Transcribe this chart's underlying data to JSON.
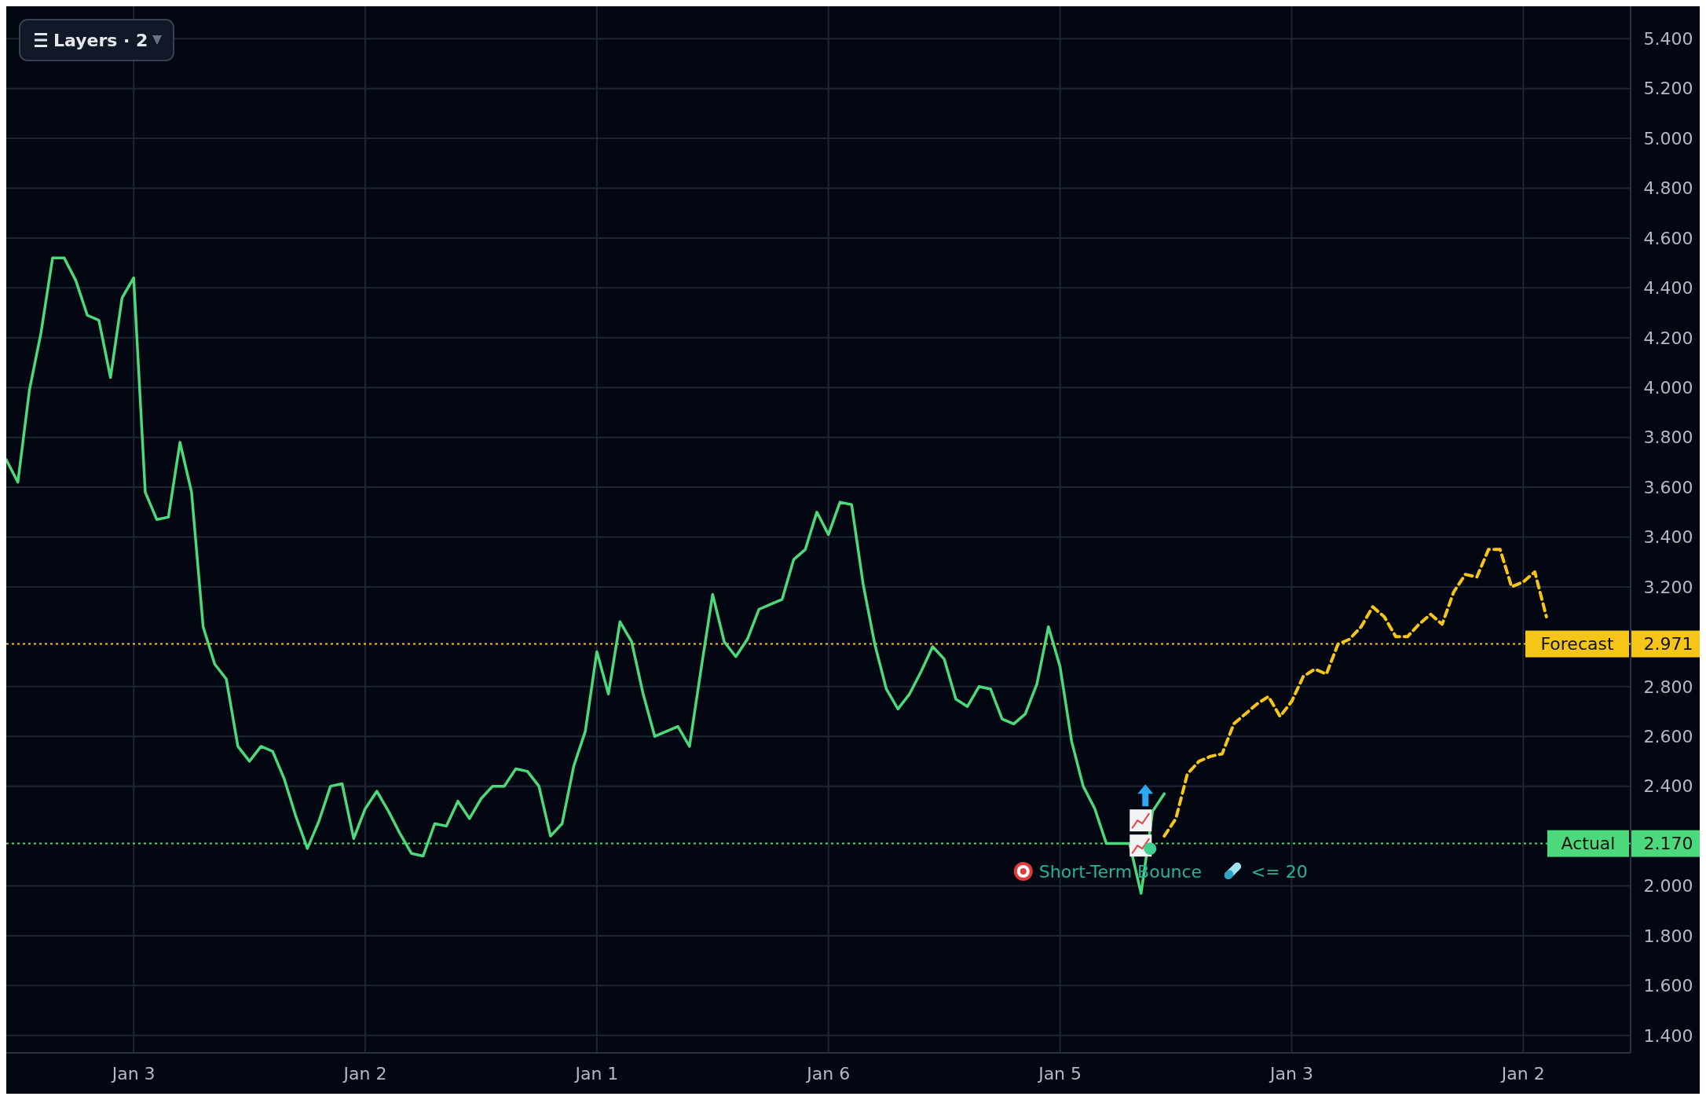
{
  "chart_data": {
    "type": "line",
    "categories": [
      null,
      null,
      null,
      null,
      null,
      null,
      null,
      null,
      null,
      null,
      null,
      "Jan 3",
      null,
      null,
      null,
      null,
      null,
      null,
      null,
      null,
      null,
      null,
      null,
      null,
      null,
      null,
      null,
      null,
      null,
      null,
      null,
      "Jan 2",
      null,
      null,
      null,
      null,
      null,
      null,
      null,
      null,
      null,
      null,
      null,
      null,
      null,
      null,
      null,
      null,
      null,
      null,
      null,
      "Jan 1",
      null,
      null,
      null,
      null,
      null,
      null,
      null,
      null,
      null,
      null,
      null,
      null,
      null,
      null,
      null,
      null,
      null,
      null,
      null,
      "Jan 6",
      null,
      null,
      null,
      null,
      null,
      null,
      null,
      null,
      null,
      null,
      null,
      null,
      null,
      null,
      null,
      null,
      null,
      null,
      null,
      "Jan 5",
      null,
      null,
      null,
      null,
      null,
      null,
      null,
      null,
      null,
      null,
      null,
      null,
      null,
      null,
      null,
      null,
      null,
      null,
      null,
      "Jan 3",
      null,
      null,
      null,
      null,
      null,
      null,
      null,
      null,
      null,
      null,
      null,
      null,
      null,
      null,
      null,
      null,
      null,
      null,
      null,
      "Jan 2",
      null,
      null,
      null,
      null,
      null,
      null,
      null,
      null,
      null
    ],
    "ylim": [
      1.33,
      5.53
    ],
    "yticks": [
      {
        "value": 1.4,
        "label": "1.400"
      },
      {
        "value": 1.6,
        "label": "1.600"
      },
      {
        "value": 1.8,
        "label": "1.800"
      },
      {
        "value": 2.0,
        "label": "2.000"
      },
      {
        "value": 2.17,
        "label": "2.170"
      },
      {
        "value": 2.4,
        "label": "2.400"
      },
      {
        "value": 2.6,
        "label": "2.600"
      },
      {
        "value": 2.8,
        "label": "2.800"
      },
      {
        "value": 2.971,
        "label": "2.971"
      },
      {
        "value": 3.2,
        "label": "3.200"
      },
      {
        "value": 3.4,
        "label": "3.400"
      },
      {
        "value": 3.6,
        "label": "3.600"
      },
      {
        "value": 3.8,
        "label": "3.800"
      },
      {
        "value": 4.0,
        "label": "4.000"
      },
      {
        "value": 4.2,
        "label": "4.200"
      },
      {
        "value": 4.4,
        "label": "4.400"
      },
      {
        "value": 4.6,
        "label": "4.600"
      },
      {
        "value": 4.8,
        "label": "4.800"
      },
      {
        "value": 5.0,
        "label": "5.000"
      },
      {
        "value": 5.2,
        "label": "5.200"
      },
      {
        "value": 5.4,
        "label": "5.400"
      }
    ],
    "grid": true,
    "marker": "none",
    "series": [
      {
        "color": "#4cd97b",
        "line_style": "solid",
        "values": [
          3.71,
          3.62,
          3.99,
          4.22,
          4.52,
          4.52,
          4.43,
          4.29,
          4.27,
          4.04,
          4.36,
          4.44,
          3.58,
          3.47,
          3.48,
          3.78,
          3.58,
          3.04,
          2.89,
          2.83,
          2.56,
          2.5,
          2.56,
          2.54,
          2.43,
          2.28,
          2.15,
          2.26,
          2.4,
          2.41,
          2.19,
          2.31,
          2.38,
          2.3,
          2.21,
          2.13,
          2.12,
          2.25,
          2.24,
          2.34,
          2.27,
          2.35,
          2.4,
          2.4,
          2.47,
          2.46,
          2.4,
          2.2,
          2.25,
          2.48,
          2.62,
          2.94,
          2.77,
          3.06,
          2.98,
          2.77,
          2.6,
          2.62,
          2.64,
          2.56,
          2.87,
          3.17,
          2.98,
          2.92,
          2.99,
          3.11,
          3.13,
          3.15,
          3.31,
          3.35,
          3.5,
          3.41,
          3.54,
          3.53,
          3.21,
          2.97,
          2.79,
          2.71,
          2.77,
          2.86,
          2.96,
          2.91,
          2.75,
          2.72,
          2.8,
          2.79,
          2.67,
          2.65,
          2.69,
          2.81,
          3.04,
          2.88,
          2.58,
          2.4,
          2.31,
          2.17,
          2.17,
          2.17,
          1.97,
          2.3,
          2.37,
          null,
          null,
          null,
          null,
          null,
          null,
          null,
          null,
          null,
          null,
          null,
          null,
          null,
          null,
          null,
          null,
          null,
          null,
          null,
          null,
          null,
          null,
          null,
          null,
          null,
          null,
          null,
          null,
          null,
          null,
          null,
          null,
          null,
          null,
          null,
          null,
          null,
          null,
          null,
          null
        ]
      },
      {
        "color": "#f5c518",
        "line_style": "dashed",
        "values": [
          null,
          null,
          null,
          null,
          null,
          null,
          null,
          null,
          null,
          null,
          null,
          null,
          null,
          null,
          null,
          null,
          null,
          null,
          null,
          null,
          null,
          null,
          null,
          null,
          null,
          null,
          null,
          null,
          null,
          null,
          null,
          null,
          null,
          null,
          null,
          null,
          null,
          null,
          null,
          null,
          null,
          null,
          null,
          null,
          null,
          null,
          null,
          null,
          null,
          null,
          null,
          null,
          null,
          null,
          null,
          null,
          null,
          null,
          null,
          null,
          null,
          null,
          null,
          null,
          null,
          null,
          null,
          null,
          null,
          null,
          null,
          null,
          null,
          null,
          null,
          null,
          null,
          null,
          null,
          null,
          null,
          null,
          null,
          null,
          null,
          null,
          null,
          null,
          null,
          null,
          null,
          null,
          null,
          null,
          null,
          null,
          null,
          null,
          null,
          null,
          2.2,
          2.27,
          2.45,
          2.5,
          2.52,
          2.53,
          2.65,
          2.69,
          2.73,
          2.76,
          2.68,
          2.74,
          2.84,
          2.87,
          2.85,
          2.97,
          2.99,
          3.04,
          3.12,
          3.08,
          3.0,
          3.0,
          3.05,
          3.09,
          3.05,
          3.18,
          3.25,
          3.24,
          3.35,
          3.35,
          3.2,
          3.22,
          3.26,
          3.08,
          null,
          null,
          null,
          null,
          null,
          null,
          null
        ]
      }
    ],
    "ref_lines": [
      {
        "axis": "y",
        "value": 2.971,
        "label": "Forecast",
        "color": "#f5c518",
        "line_style": "dotted"
      },
      {
        "axis": "y",
        "value": 2.17,
        "label": "Actual",
        "color": "#4cd97b",
        "line_style": "dotted"
      }
    ],
    "annotations": [
      "Layers · 2",
      "Short-Term Bounce",
      "<= 20"
    ]
  }
}
